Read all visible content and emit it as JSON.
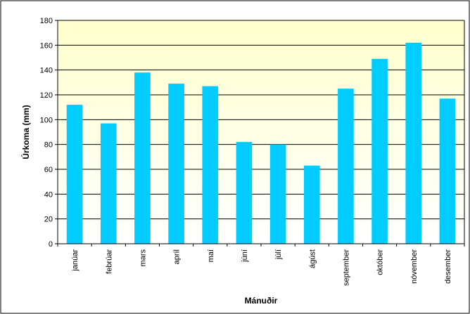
{
  "chart_data": {
    "type": "bar",
    "categories": [
      "janúar",
      "febrúar",
      "mars",
      "apríl",
      "maí",
      "júní",
      "júlí",
      "ágúst",
      "september",
      "október",
      "nóvember",
      "desember"
    ],
    "values": [
      112,
      97,
      138,
      129,
      127,
      82,
      80,
      63,
      125,
      149,
      162,
      117
    ],
    "xlabel": "Mánuðir",
    "ylabel": "Úrkoma (mm)",
    "ylim": [
      0,
      180
    ],
    "yticks": [
      0,
      20,
      40,
      60,
      80,
      100,
      120,
      140,
      160,
      180
    ],
    "grid": true,
    "legend": "none",
    "colors": {
      "bar": "#00CCFF",
      "plot_bg_top": "#FFFFCC",
      "plot_bg_bottom": "#FFFFFF",
      "grid": "#000000"
    }
  }
}
